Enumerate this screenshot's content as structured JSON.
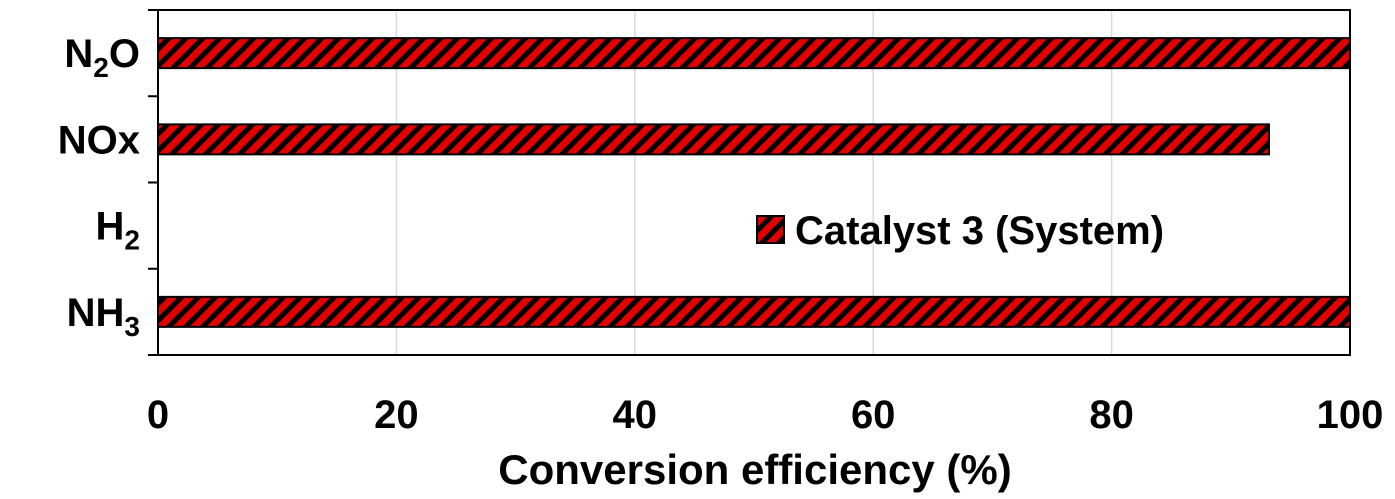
{
  "chart_data": {
    "type": "bar",
    "orientation": "horizontal",
    "categories": [
      "NH",
      "H",
      "NOx",
      "N O"
    ],
    "category_subscripts": [
      "3",
      "2",
      "",
      "2"
    ],
    "category_labels": [
      {
        "main": "NH",
        "sub": "3",
        "tail": ""
      },
      {
        "main": "H",
        "sub": "2",
        "tail": ""
      },
      {
        "main": "NOx",
        "sub": "",
        "tail": ""
      },
      {
        "main": "N",
        "sub": "2",
        "tail": "O"
      }
    ],
    "series": [
      {
        "name": "Catalyst 3 (System)",
        "values": [
          100,
          null,
          93.2,
          100
        ],
        "color": "#e00000",
        "pattern": "diagonal-hatch-black"
      }
    ],
    "xlabel": "Conversion efficiency (%)",
    "ylabel": "",
    "title": "",
    "xlim": [
      0,
      100
    ],
    "x_ticks": [
      0,
      20,
      40,
      60,
      80,
      100
    ],
    "x_tick_labels": [
      "0",
      "20",
      "40",
      "60",
      "80",
      "100"
    ],
    "grid": "vertical",
    "legend_position": "right-center"
  }
}
